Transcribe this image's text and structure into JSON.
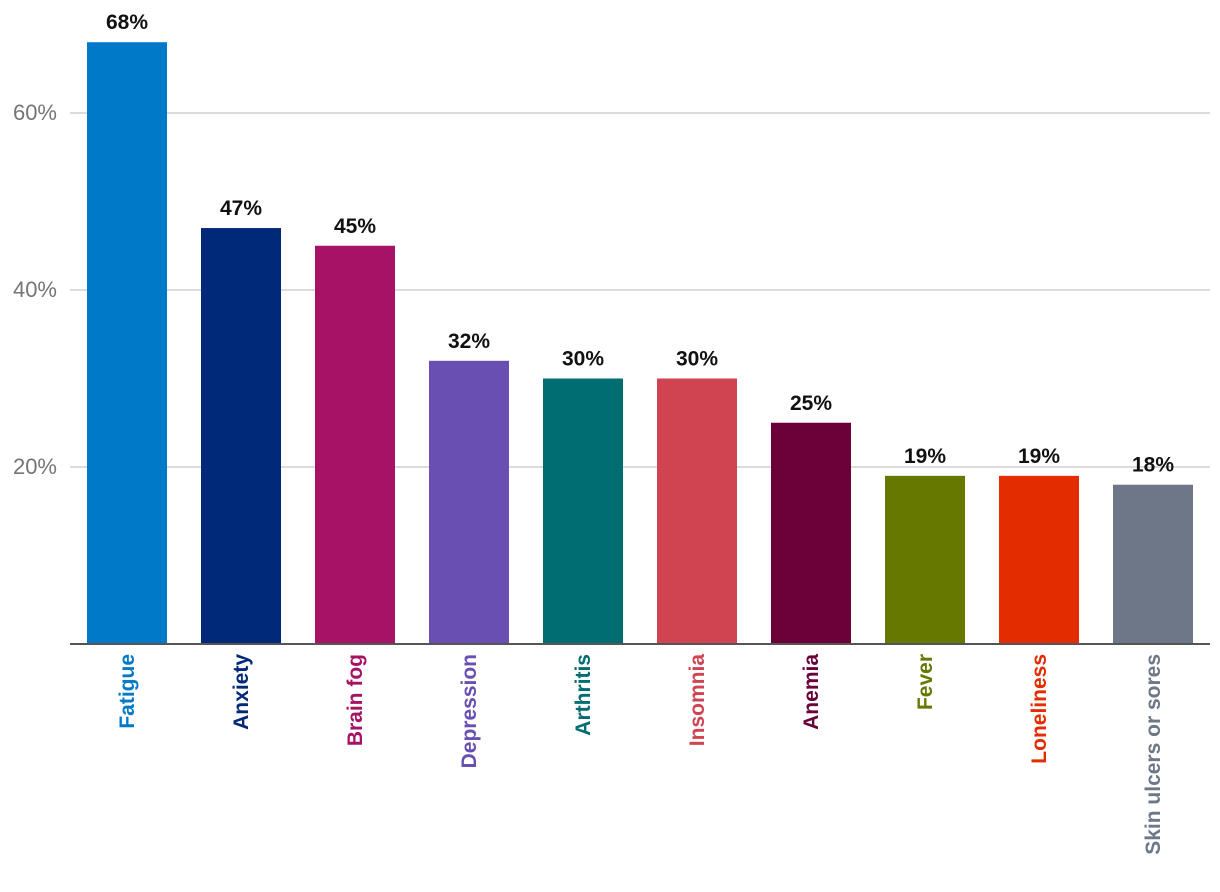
{
  "chart_data": {
    "type": "bar",
    "title": "",
    "xlabel": "",
    "ylabel": "",
    "ylim": [
      0,
      70
    ],
    "grid": true,
    "y_ticks": [
      {
        "value": 20,
        "label": "20%"
      },
      {
        "value": 40,
        "label": "40%"
      },
      {
        "value": 60,
        "label": "60%"
      }
    ],
    "categories": [
      "Fatigue",
      "Anxiety",
      "Brain fog",
      "Depression",
      "Arthritis",
      "Insomnia",
      "Anemia",
      "Fever",
      "Loneliness",
      "Skin ulcers or sores"
    ],
    "values": [
      68,
      47,
      45,
      32,
      30,
      30,
      25,
      19,
      19,
      18
    ],
    "value_labels": [
      "68%",
      "47%",
      "45%",
      "32%",
      "30%",
      "30%",
      "25%",
      "19%",
      "19%",
      "18%"
    ],
    "colors": [
      "#0079C9",
      "#00297A",
      "#A61366",
      "#6A4FB3",
      "#006D72",
      "#D04452",
      "#6B0039",
      "#677800",
      "#E32C00",
      "#6E7787"
    ]
  }
}
